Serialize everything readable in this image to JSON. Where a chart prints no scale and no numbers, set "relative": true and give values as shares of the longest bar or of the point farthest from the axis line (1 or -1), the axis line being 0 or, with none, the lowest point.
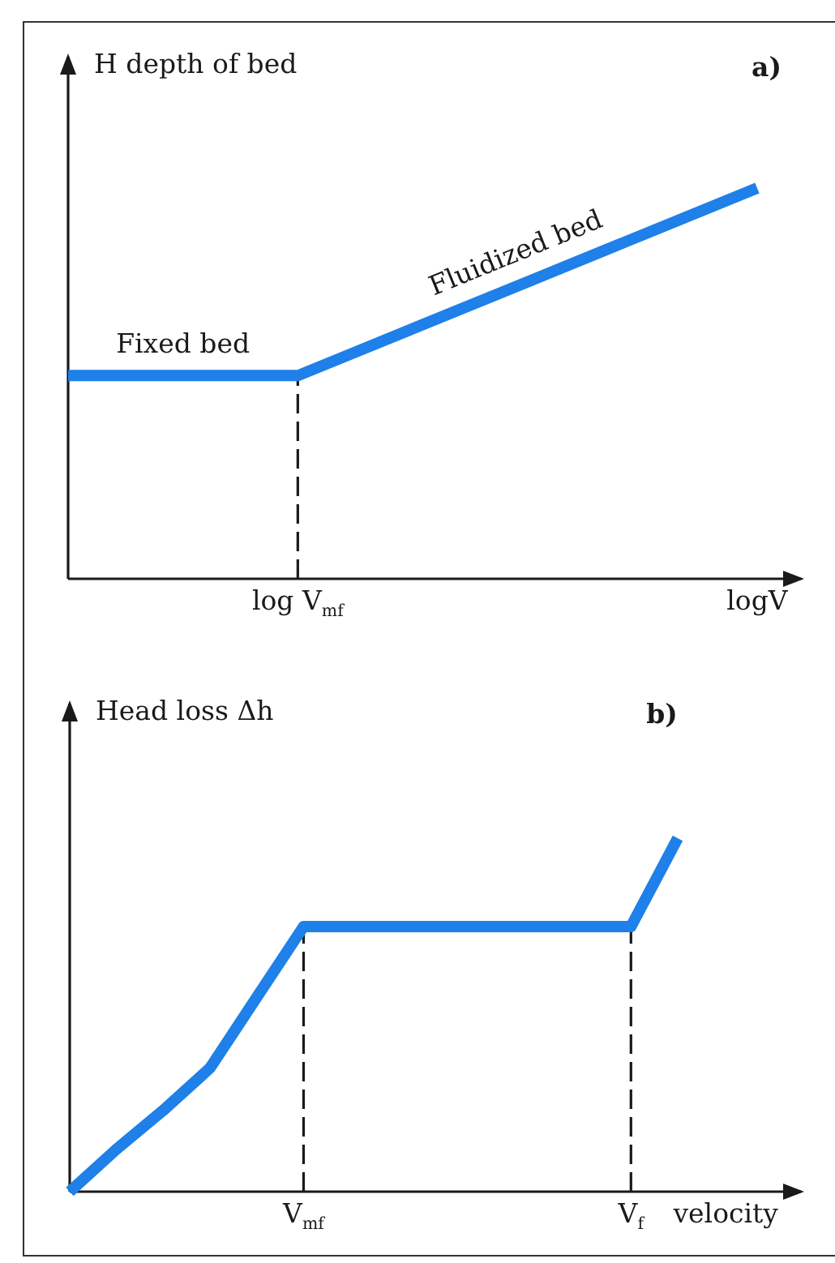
{
  "chart_data": [
    {
      "type": "line",
      "title": "a)",
      "ylabel": "H depth of bed",
      "relative": true,
      "categories": [
        null,
        "log V$_{mf}$",
        null,
        "logV"
      ],
      "series": [
        {
          "color": "#1e80e8",
          "values": [
            0.52,
            0.52,
            0.76,
            1
          ]
        }
      ],
      "ref_lines": [
        {
          "axis": "x",
          "value": "log V$_{mf}$",
          "color": "#1a1a1a",
          "line_style": "dashed"
        }
      ],
      "annotations": [
        "Fixed bed",
        "Fluidized bed"
      ],
      "line_style": "solid"
    },
    {
      "type": "line",
      "title": "b)",
      "ylabel": "Head loss Δh",
      "xlabel": "velocity",
      "relative": true,
      "categories": [
        null,
        null,
        null,
        null,
        null,
        "V$_{mf}$",
        null,
        null,
        null,
        null,
        null,
        null,
        "V$_{f}$",
        null
      ],
      "series": [
        {
          "color": "#1e80e8",
          "values": [
            0,
            0.12,
            0.23,
            0.35,
            0.55,
            0.75,
            0.75,
            0.75,
            0.75,
            0.75,
            0.75,
            0.75,
            0.75,
            1
          ]
        }
      ],
      "ref_lines": [
        {
          "axis": "x",
          "value": "V$_{mf}$",
          "color": "#1a1a1a",
          "line_style": "dashed"
        },
        {
          "axis": "x",
          "value": "V$_{f}$",
          "color": "#1a1a1a",
          "line_style": "dashed"
        }
      ],
      "line_style": "solid"
    }
  ]
}
